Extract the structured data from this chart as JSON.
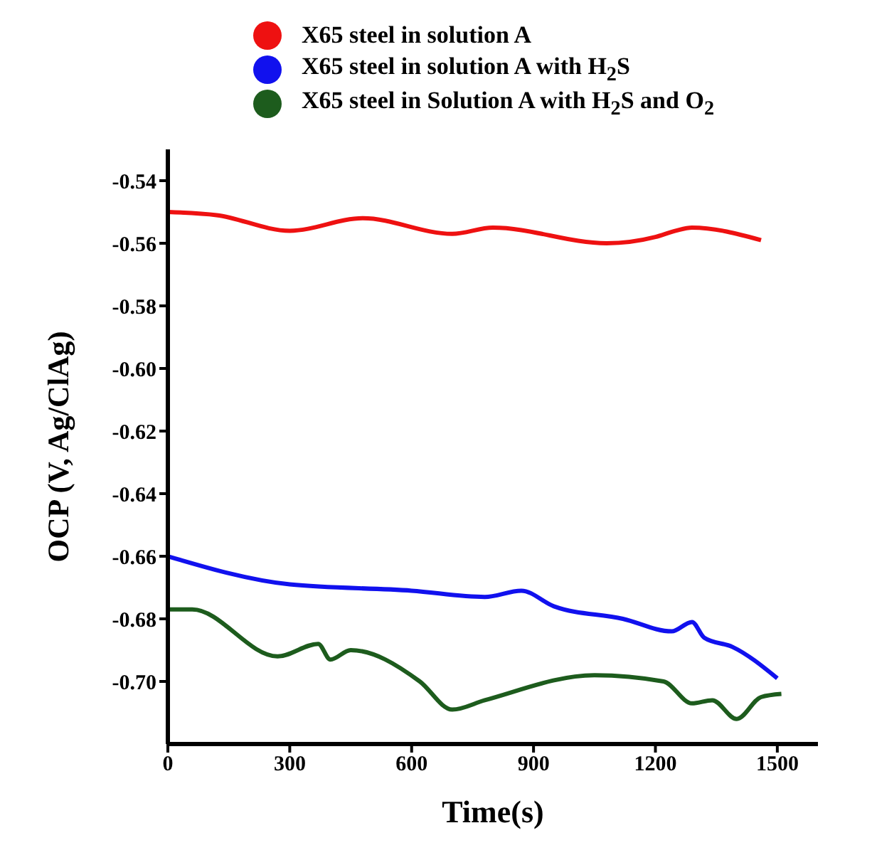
{
  "chart_data": {
    "type": "line",
    "xlabel": "Time(s)",
    "ylabel": "OCP (V, Ag/ClAg)",
    "xlim": [
      0,
      1600
    ],
    "xticks": [
      0,
      300,
      600,
      900,
      1200,
      1500
    ],
    "ylim": [
      -0.72,
      -0.53
    ],
    "yticks": [
      {
        "value": -0.7,
        "label": "-0.70"
      },
      -0.68,
      -0.66,
      -0.64,
      -0.62,
      {
        "value": -0.6,
        "label": "-0.60"
      },
      -0.58,
      -0.56,
      -0.54
    ],
    "legend": "top",
    "grid": false,
    "marker": "none",
    "line_style": "solid",
    "series": [
      {
        "name": "X65 steel in solution A",
        "color": "#ee1111",
        "x": [
          0,
          120,
          300,
          480,
          700,
          800,
          1080,
          1200,
          1250,
          1290,
          1460
        ],
        "values": [
          -0.55,
          -0.551,
          -0.556,
          -0.552,
          -0.557,
          -0.555,
          -0.56,
          -0.558,
          -0.556,
          -0.555,
          -0.559
        ]
      },
      {
        "name": "X65 steel in solution A with H$_{2}$S",
        "color": "#1111ee",
        "x": [
          0,
          300,
          600,
          780,
          870,
          950,
          1120,
          1240,
          1290,
          1320,
          1390,
          1500
        ],
        "values": [
          -0.66,
          -0.669,
          -0.671,
          -0.673,
          -0.671,
          -0.676,
          -0.68,
          -0.684,
          -0.681,
          -0.686,
          -0.689,
          -0.699
        ]
      },
      {
        "name": "X65 steel in Solution A with H$_{2}$S and O$_{2}$",
        "color": "#1d5c1d",
        "x": [
          0,
          60,
          270,
          370,
          400,
          450,
          620,
          700,
          780,
          1050,
          1220,
          1290,
          1340,
          1400,
          1460,
          1510
        ],
        "values": [
          -0.677,
          -0.677,
          -0.692,
          -0.688,
          -0.693,
          -0.69,
          -0.7,
          -0.709,
          -0.706,
          -0.698,
          -0.7,
          -0.707,
          -0.706,
          -0.712,
          -0.705,
          -0.704
        ]
      }
    ]
  }
}
